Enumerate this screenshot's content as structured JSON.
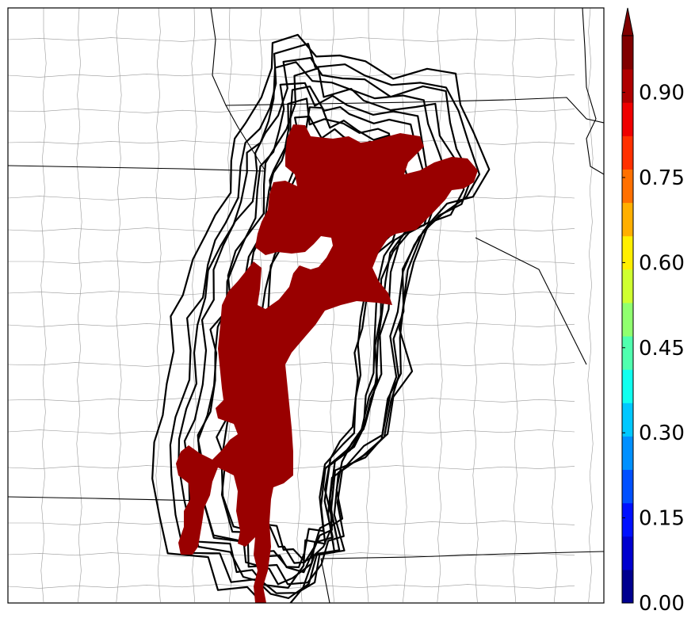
{
  "map": {
    "fill_color": "#990000",
    "county_line_color": "#999999",
    "state_line_color": "#000000",
    "contour_color": "#000000"
  },
  "colorbar": {
    "extend": "max",
    "palette": [
      "#00008f",
      "#0000cf",
      "#0010ff",
      "#0050ff",
      "#0090ff",
      "#00c8ff",
      "#10ffef",
      "#50ffaf",
      "#90ff6f",
      "#cfff30",
      "#ffef00",
      "#ffaf00",
      "#ff7000",
      "#ff3000",
      "#ef0000",
      "#af0000",
      "#800000"
    ],
    "ticks": [
      {
        "value": 0.0,
        "label": "0.00"
      },
      {
        "value": 0.15,
        "label": "0.15"
      },
      {
        "value": 0.3,
        "label": "0.30"
      },
      {
        "value": 0.45,
        "label": "0.45"
      },
      {
        "value": 0.6,
        "label": "0.60"
      },
      {
        "value": 0.75,
        "label": "0.75"
      },
      {
        "value": 0.9,
        "label": "0.90"
      }
    ],
    "range": [
      0.0,
      1.0
    ]
  }
}
